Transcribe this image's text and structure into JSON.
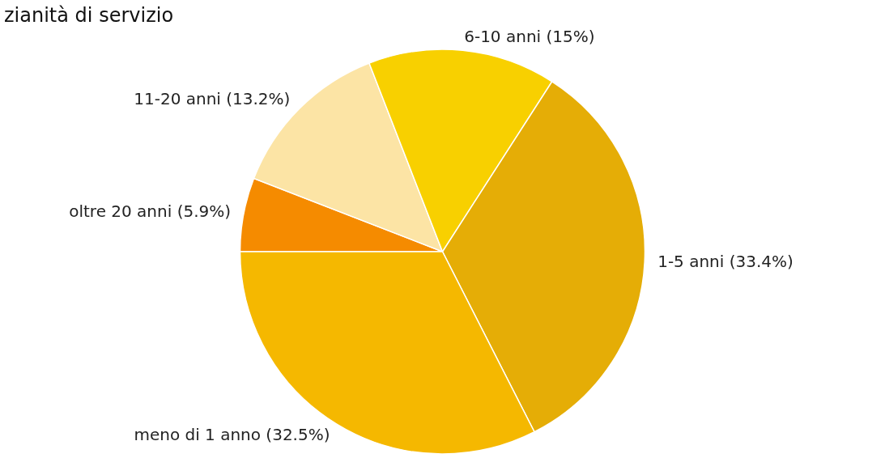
{
  "chart_data": {
    "type": "pie",
    "title": "zianità di servizio",
    "categories": [
      "meno di 1 anno",
      "1-5 anni",
      "6-10 anni",
      "11-20 anni",
      "oltre 20 anni"
    ],
    "values": [
      32.5,
      33.4,
      15,
      13.2,
      5.9
    ],
    "colors": [
      "#f5b800",
      "#e5ad06",
      "#f8d000",
      "#fce4a5",
      "#f58b00"
    ],
    "value_labels": [
      "(32.5%)",
      "(33.4%)",
      "(15%)",
      "(13.2%)",
      "(5.9%)"
    ],
    "legend": false
  }
}
